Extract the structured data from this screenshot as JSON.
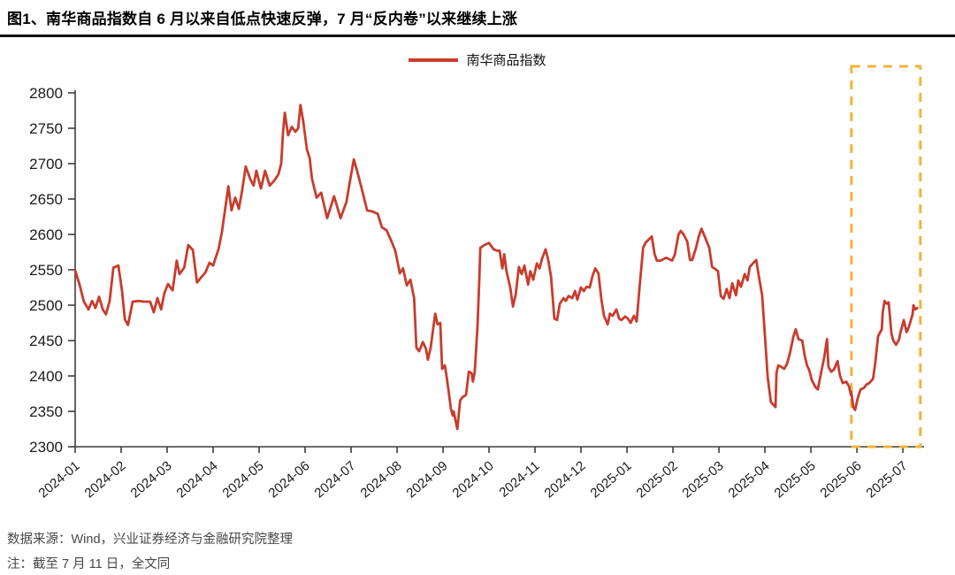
{
  "header": {
    "title": "图1、南华商品指数自 6 月以来自低点快速反弹，7 月“反内卷”以来继续上涨"
  },
  "legend": {
    "label": "南华商品指数"
  },
  "footer": {
    "source": "数据来源：Wind，兴业证券经济与金融研究院整理",
    "note": "注：截至 7 月 11 日，全文同"
  },
  "chart_data": {
    "type": "line",
    "title": "南华商品指数",
    "xlabel": "",
    "ylabel": "",
    "grid": false,
    "legend_position": "top-center",
    "axis_color": "#3c3c3c",
    "text_color": "#1a1a1a",
    "ylim": [
      2300,
      2800
    ],
    "y_ticks": [
      2300,
      2350,
      2400,
      2450,
      2500,
      2550,
      2600,
      2650,
      2700,
      2750,
      2800
    ],
    "x_labels": [
      "2024-01",
      "2024-02",
      "2024-03",
      "2024-04",
      "2024-05",
      "2024-06",
      "2024-07",
      "2024-08",
      "2024-09",
      "2024-10",
      "2024-11",
      "2024-12",
      "2025-01",
      "2025-02",
      "2025-03",
      "2025-04",
      "2025-05",
      "2025-06",
      "2025-07"
    ],
    "x_max": 18.46,
    "highlight_box": {
      "x0": 16.88,
      "x1": 18.38,
      "color": "#F2B33C",
      "style": "dashed",
      "meaning": "2025-06 至 2025-07 反弹区间"
    },
    "series": [
      {
        "name": "南华商品指数",
        "color": "#C83C2D",
        "points": [
          [
            0,
            2549
          ],
          [
            0.1,
            2528
          ],
          [
            0.19,
            2505
          ],
          [
            0.29,
            2494
          ],
          [
            0.37,
            2506
          ],
          [
            0.44,
            2496
          ],
          [
            0.52,
            2512
          ],
          [
            0.6,
            2494
          ],
          [
            0.67,
            2487
          ],
          [
            0.75,
            2506
          ],
          [
            0.83,
            2553
          ],
          [
            0.94,
            2556
          ],
          [
            1.02,
            2520
          ],
          [
            1.08,
            2480
          ],
          [
            1.15,
            2472
          ],
          [
            1.25,
            2505
          ],
          [
            1.37,
            2506
          ],
          [
            1.5,
            2505
          ],
          [
            1.63,
            2505
          ],
          [
            1.71,
            2490
          ],
          [
            1.79,
            2510
          ],
          [
            1.87,
            2494
          ],
          [
            1.94,
            2517
          ],
          [
            2.02,
            2530
          ],
          [
            2.12,
            2521
          ],
          [
            2.21,
            2563
          ],
          [
            2.27,
            2544
          ],
          [
            2.37,
            2553
          ],
          [
            2.46,
            2585
          ],
          [
            2.56,
            2578
          ],
          [
            2.65,
            2532
          ],
          [
            2.75,
            2540
          ],
          [
            2.83,
            2546
          ],
          [
            2.92,
            2560
          ],
          [
            3,
            2556
          ],
          [
            3.12,
            2580
          ],
          [
            3.19,
            2603
          ],
          [
            3.27,
            2640
          ],
          [
            3.33,
            2668
          ],
          [
            3.4,
            2634
          ],
          [
            3.48,
            2652
          ],
          [
            3.56,
            2636
          ],
          [
            3.63,
            2662
          ],
          [
            3.71,
            2696
          ],
          [
            3.81,
            2678
          ],
          [
            3.88,
            2669
          ],
          [
            3.94,
            2690
          ],
          [
            4.04,
            2665
          ],
          [
            4.13,
            2690
          ],
          [
            4.23,
            2669
          ],
          [
            4.33,
            2676
          ],
          [
            4.42,
            2685
          ],
          [
            4.48,
            2700
          ],
          [
            4.52,
            2745
          ],
          [
            4.56,
            2772
          ],
          [
            4.63,
            2740
          ],
          [
            4.71,
            2752
          ],
          [
            4.79,
            2745
          ],
          [
            4.85,
            2750
          ],
          [
            4.9,
            2783
          ],
          [
            4.96,
            2760
          ],
          [
            5.04,
            2720
          ],
          [
            5.1,
            2708
          ],
          [
            5.15,
            2679
          ],
          [
            5.25,
            2652
          ],
          [
            5.35,
            2659
          ],
          [
            5.48,
            2623
          ],
          [
            5.63,
            2654
          ],
          [
            5.77,
            2623
          ],
          [
            5.9,
            2646
          ],
          [
            5.96,
            2669
          ],
          [
            6.06,
            2706
          ],
          [
            6.13,
            2690
          ],
          [
            6.25,
            2660
          ],
          [
            6.35,
            2634
          ],
          [
            6.48,
            2632
          ],
          [
            6.58,
            2629
          ],
          [
            6.67,
            2610
          ],
          [
            6.77,
            2606
          ],
          [
            6.88,
            2590
          ],
          [
            6.96,
            2577
          ],
          [
            7.06,
            2545
          ],
          [
            7.13,
            2552
          ],
          [
            7.21,
            2528
          ],
          [
            7.29,
            2536
          ],
          [
            7.37,
            2510
          ],
          [
            7.42,
            2440
          ],
          [
            7.48,
            2435
          ],
          [
            7.56,
            2448
          ],
          [
            7.63,
            2438
          ],
          [
            7.67,
            2423
          ],
          [
            7.73,
            2440
          ],
          [
            7.83,
            2488
          ],
          [
            7.88,
            2473
          ],
          [
            7.94,
            2475
          ],
          [
            7.98,
            2410
          ],
          [
            8.04,
            2415
          ],
          [
            8.08,
            2398
          ],
          [
            8.12,
            2379
          ],
          [
            8.17,
            2354
          ],
          [
            8.21,
            2344
          ],
          [
            8.23,
            2350
          ],
          [
            8.31,
            2325
          ],
          [
            8.37,
            2365
          ],
          [
            8.42,
            2370
          ],
          [
            8.5,
            2373
          ],
          [
            8.56,
            2406
          ],
          [
            8.62,
            2404
          ],
          [
            8.65,
            2392
          ],
          [
            8.69,
            2406
          ],
          [
            8.75,
            2470
          ],
          [
            8.79,
            2538
          ],
          [
            8.81,
            2581
          ],
          [
            8.9,
            2585
          ],
          [
            9,
            2588
          ],
          [
            9.1,
            2579
          ],
          [
            9.17,
            2577
          ],
          [
            9.23,
            2577
          ],
          [
            9.29,
            2552
          ],
          [
            9.33,
            2572
          ],
          [
            9.38,
            2548
          ],
          [
            9.46,
            2525
          ],
          [
            9.52,
            2498
          ],
          [
            9.58,
            2515
          ],
          [
            9.65,
            2554
          ],
          [
            9.71,
            2544
          ],
          [
            9.77,
            2556
          ],
          [
            9.85,
            2529
          ],
          [
            9.9,
            2548
          ],
          [
            9.96,
            2536
          ],
          [
            10.04,
            2559
          ],
          [
            10.1,
            2552
          ],
          [
            10.15,
            2565
          ],
          [
            10.23,
            2579
          ],
          [
            10.29,
            2563
          ],
          [
            10.35,
            2540
          ],
          [
            10.42,
            2481
          ],
          [
            10.48,
            2479
          ],
          [
            10.54,
            2502
          ],
          [
            10.62,
            2510
          ],
          [
            10.67,
            2506
          ],
          [
            10.73,
            2513
          ],
          [
            10.81,
            2510
          ],
          [
            10.87,
            2520
          ],
          [
            10.92,
            2508
          ],
          [
            11,
            2525
          ],
          [
            11.06,
            2520
          ],
          [
            11.12,
            2526
          ],
          [
            11.19,
            2525
          ],
          [
            11.25,
            2541
          ],
          [
            11.31,
            2552
          ],
          [
            11.38,
            2545
          ],
          [
            11.44,
            2510
          ],
          [
            11.5,
            2485
          ],
          [
            11.58,
            2473
          ],
          [
            11.63,
            2488
          ],
          [
            11.69,
            2485
          ],
          [
            11.77,
            2494
          ],
          [
            11.83,
            2481
          ],
          [
            11.88,
            2479
          ],
          [
            11.96,
            2484
          ],
          [
            12.02,
            2481
          ],
          [
            12.08,
            2475
          ],
          [
            12.15,
            2485
          ],
          [
            12.21,
            2477
          ],
          [
            12.27,
            2523
          ],
          [
            12.35,
            2581
          ],
          [
            12.4,
            2588
          ],
          [
            12.46,
            2592
          ],
          [
            12.54,
            2597
          ],
          [
            12.6,
            2572
          ],
          [
            12.65,
            2563
          ],
          [
            12.73,
            2563
          ],
          [
            12.79,
            2565
          ],
          [
            12.85,
            2567
          ],
          [
            12.92,
            2565
          ],
          [
            12.98,
            2563
          ],
          [
            13.04,
            2571
          ],
          [
            13.12,
            2600
          ],
          [
            13.17,
            2605
          ],
          [
            13.23,
            2600
          ],
          [
            13.31,
            2590
          ],
          [
            13.37,
            2564
          ],
          [
            13.42,
            2564
          ],
          [
            13.5,
            2581
          ],
          [
            13.56,
            2597
          ],
          [
            13.62,
            2608
          ],
          [
            13.71,
            2594
          ],
          [
            13.79,
            2581
          ],
          [
            13.85,
            2554
          ],
          [
            13.9,
            2552
          ],
          [
            13.98,
            2548
          ],
          [
            14.04,
            2513
          ],
          [
            14.1,
            2509
          ],
          [
            14.17,
            2523
          ],
          [
            14.23,
            2510
          ],
          [
            14.29,
            2531
          ],
          [
            14.37,
            2514
          ],
          [
            14.42,
            2535
          ],
          [
            14.48,
            2526
          ],
          [
            14.56,
            2544
          ],
          [
            14.62,
            2535
          ],
          [
            14.67,
            2554
          ],
          [
            14.75,
            2560
          ],
          [
            14.81,
            2564
          ],
          [
            14.87,
            2540
          ],
          [
            14.94,
            2514
          ],
          [
            15,
            2456
          ],
          [
            15.06,
            2398
          ],
          [
            15.13,
            2363
          ],
          [
            15.23,
            2356
          ],
          [
            15.25,
            2404
          ],
          [
            15.29,
            2415
          ],
          [
            15.35,
            2413
          ],
          [
            15.42,
            2410
          ],
          [
            15.48,
            2417
          ],
          [
            15.54,
            2431
          ],
          [
            15.62,
            2456
          ],
          [
            15.67,
            2466
          ],
          [
            15.73,
            2452
          ],
          [
            15.81,
            2450
          ],
          [
            15.87,
            2427
          ],
          [
            15.92,
            2414
          ],
          [
            15.96,
            2409
          ],
          [
            16.02,
            2394
          ],
          [
            16.1,
            2384
          ],
          [
            16.15,
            2381
          ],
          [
            16.21,
            2401
          ],
          [
            16.29,
            2427
          ],
          [
            16.35,
            2452
          ],
          [
            16.38,
            2413
          ],
          [
            16.44,
            2406
          ],
          [
            16.5,
            2409
          ],
          [
            16.58,
            2421
          ],
          [
            16.63,
            2401
          ],
          [
            16.69,
            2390
          ],
          [
            16.77,
            2392
          ],
          [
            16.83,
            2385
          ],
          [
            16.87,
            2373
          ],
          [
            16.88,
            2377
          ],
          [
            16.92,
            2356
          ],
          [
            16.96,
            2352
          ],
          [
            17.02,
            2369
          ],
          [
            17.08,
            2381
          ],
          [
            17.15,
            2383
          ],
          [
            17.21,
            2388
          ],
          [
            17.27,
            2390
          ],
          [
            17.35,
            2396
          ],
          [
            17.4,
            2419
          ],
          [
            17.46,
            2456
          ],
          [
            17.54,
            2466
          ],
          [
            17.56,
            2489
          ],
          [
            17.6,
            2506
          ],
          [
            17.65,
            2502
          ],
          [
            17.69,
            2504
          ],
          [
            17.75,
            2460
          ],
          [
            17.79,
            2450
          ],
          [
            17.85,
            2444
          ],
          [
            17.92,
            2452
          ],
          [
            17.94,
            2460
          ],
          [
            18.02,
            2479
          ],
          [
            18.04,
            2473
          ],
          [
            18.08,
            2462
          ],
          [
            18.13,
            2469
          ],
          [
            18.21,
            2487
          ],
          [
            18.23,
            2500
          ],
          [
            18.27,
            2494
          ],
          [
            18.31,
            2496
          ]
        ]
      }
    ]
  }
}
